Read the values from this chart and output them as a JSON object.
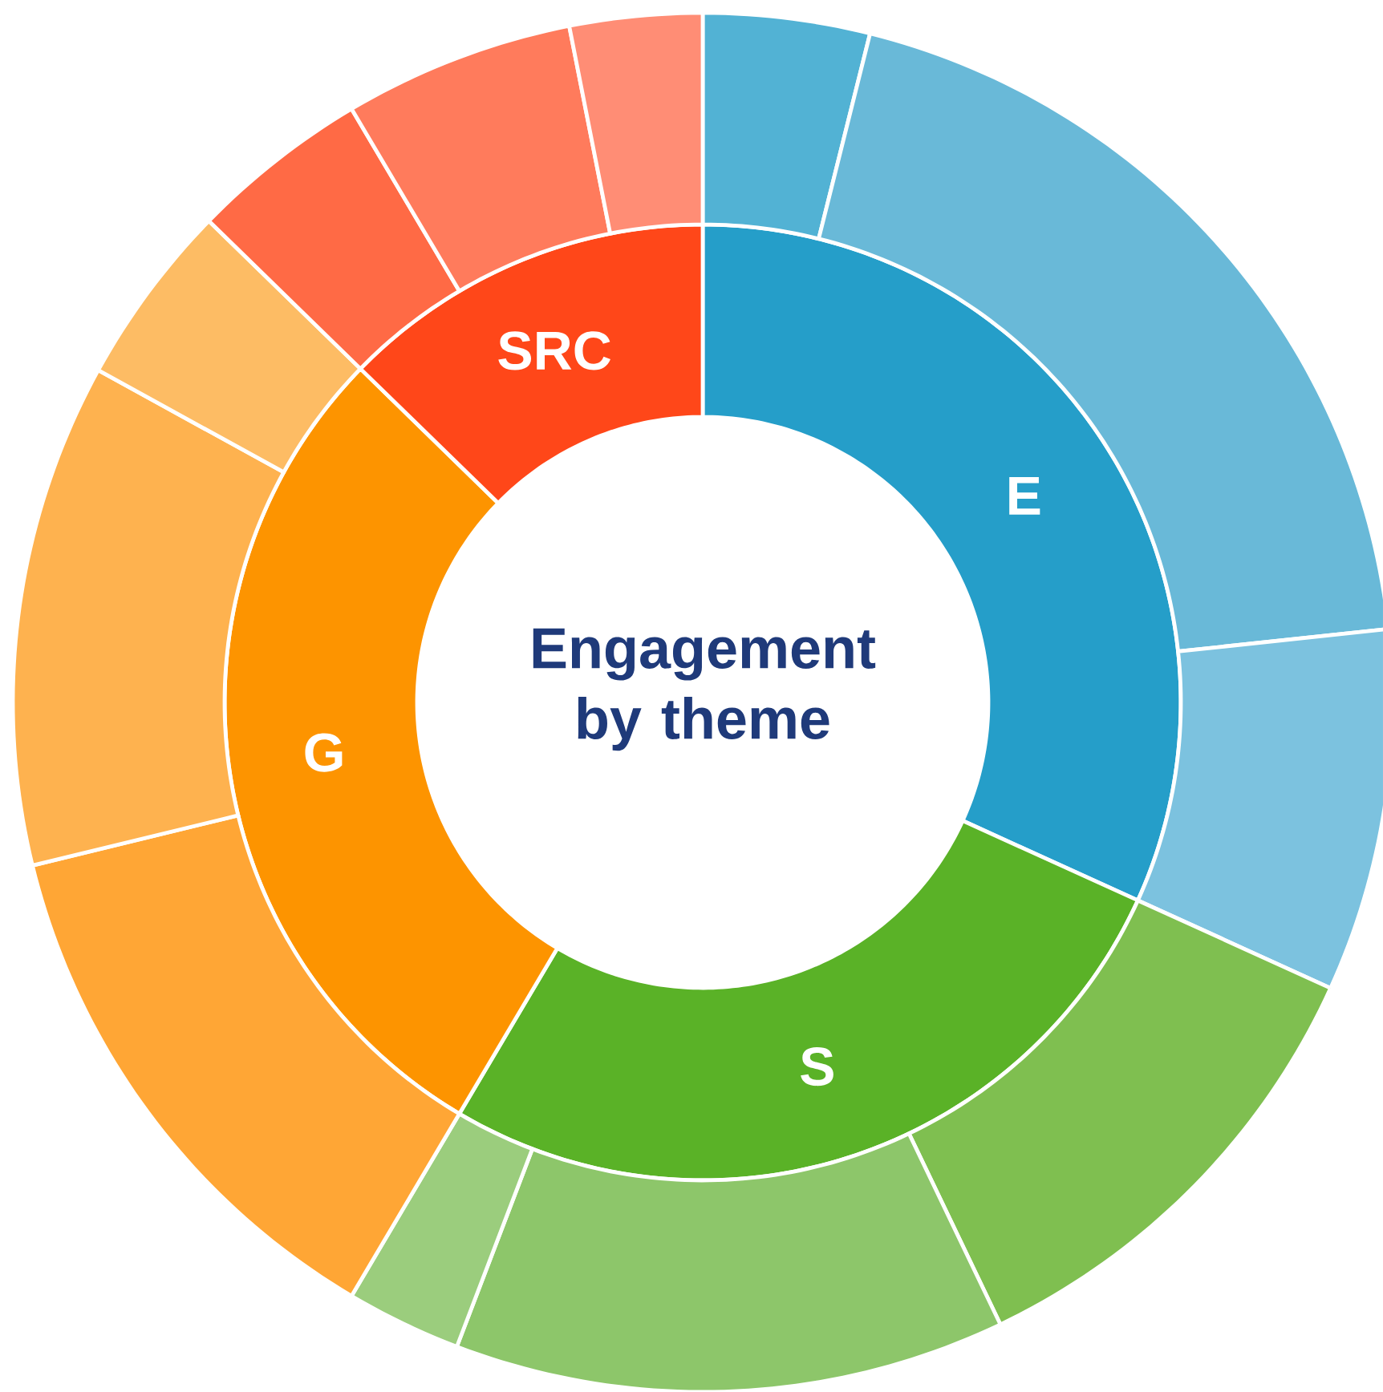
{
  "chart_data": [
    {
      "type": "donut",
      "title": "Engagement by theme",
      "categories": [
        "E",
        "S",
        "G",
        "SRC"
      ],
      "values": [
        31.8,
        26.7,
        28.8,
        12.7
      ],
      "colors": [
        "#259ec9",
        "#5ab227",
        "#fd9400",
        "#ff4719"
      ]
    },
    {
      "type": "donut",
      "categories": [
        null,
        null,
        null,
        null,
        null,
        null,
        null,
        null,
        null,
        null,
        null,
        null
      ],
      "values": [
        3.9,
        19.4,
        8.5,
        11.1,
        12.9,
        2.7,
        12.7,
        11.8,
        4.3,
        4.2,
        5.4,
        3.1
      ],
      "colors": [
        "#52b2d4",
        "#69b9d8",
        "#7cc2df",
        "#7fbf50",
        "#8dc66a",
        "#9bcd7d",
        "#ffa635",
        "#feb24f",
        "#fdbc64",
        "#ff6a45",
        "#ff7b5c",
        "#ff8d75"
      ]
    }
  ]
}
